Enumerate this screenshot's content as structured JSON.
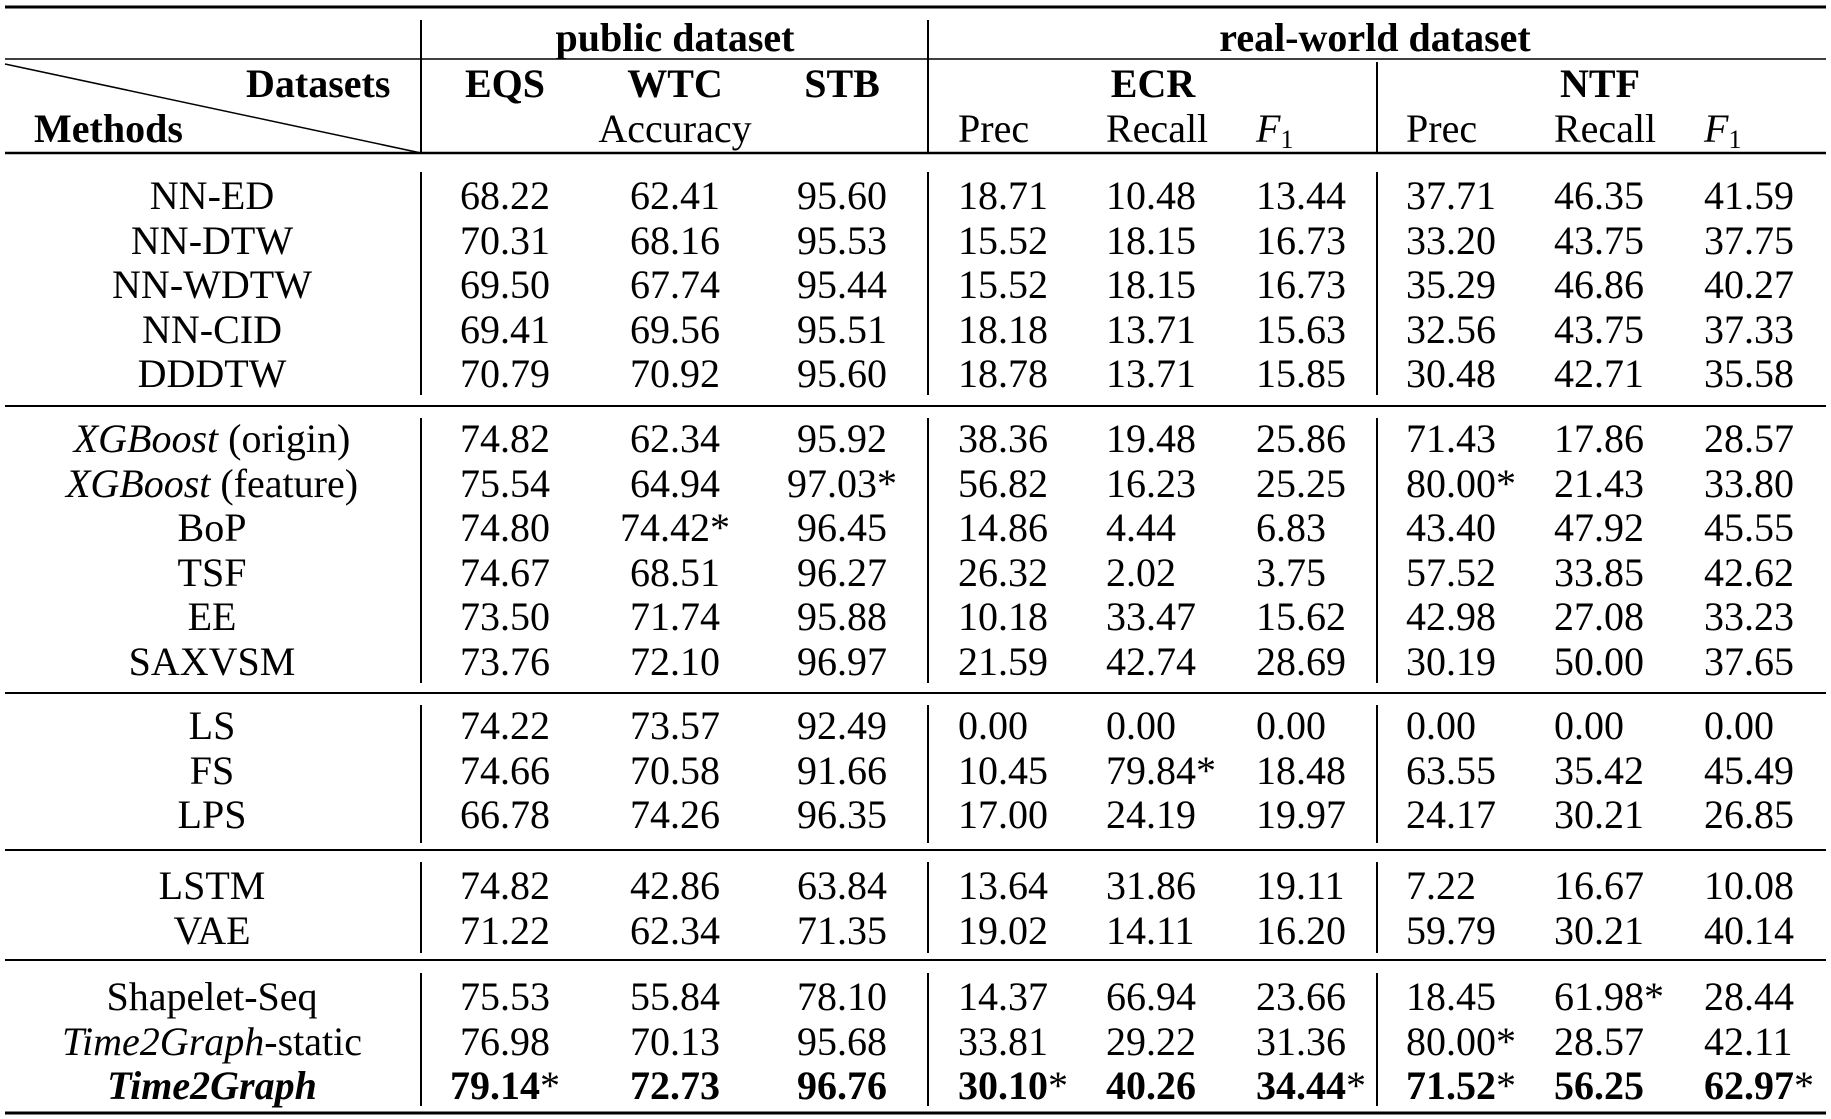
{
  "header": {
    "group_public": "public dataset",
    "group_real": "real-world dataset",
    "diag_top": "Datasets",
    "diag_bottom": "Methods",
    "datasets": [
      "EQS",
      "WTC",
      "STB",
      "ECR",
      "NTF"
    ],
    "accuracy_label": "Accuracy",
    "prec": "Prec",
    "recall": "Recall",
    "f1_main": "F",
    "f1_sub": "1"
  },
  "groups": [
    {
      "rows": [
        {
          "method": "NN-ED",
          "italic": "",
          "suffix": "",
          "values": [
            "68.22",
            "62.41",
            "95.60",
            "18.71",
            "10.48",
            "13.44",
            "37.71",
            "46.35",
            "41.59"
          ]
        },
        {
          "method": "NN-DTW",
          "italic": "",
          "suffix": "",
          "values": [
            "70.31",
            "68.16",
            "95.53",
            "15.52",
            "18.15",
            "16.73",
            "33.20",
            "43.75",
            "37.75"
          ]
        },
        {
          "method": "NN-WDTW",
          "italic": "",
          "suffix": "",
          "values": [
            "69.50",
            "67.74",
            "95.44",
            "15.52",
            "18.15",
            "16.73",
            "35.29",
            "46.86",
            "40.27"
          ]
        },
        {
          "method": "NN-CID",
          "italic": "",
          "suffix": "",
          "values": [
            "69.41",
            "69.56",
            "95.51",
            "18.18",
            "13.71",
            "15.63",
            "32.56",
            "43.75",
            "37.33"
          ]
        },
        {
          "method": "DDDTW",
          "italic": "",
          "suffix": "",
          "values": [
            "70.79",
            "70.92",
            "95.60",
            "18.78",
            "13.71",
            "15.85",
            "30.48",
            "42.71",
            "35.58"
          ]
        }
      ]
    },
    {
      "rows": [
        {
          "method": "",
          "italic": "XGBoost",
          "suffix": " (origin)",
          "values": [
            "74.82",
            "62.34",
            "95.92",
            "38.36",
            "19.48",
            "25.86",
            "71.43",
            "17.86",
            "28.57"
          ]
        },
        {
          "method": "",
          "italic": "XGBoost",
          "suffix": " (feature)",
          "values": [
            "75.54",
            "64.94",
            "97.03*",
            "56.82",
            "16.23",
            "25.25",
            "80.00*",
            "21.43",
            "33.80"
          ]
        },
        {
          "method": "BoP",
          "italic": "",
          "suffix": "",
          "values": [
            "74.80",
            "74.42*",
            "96.45",
            "14.86",
            "4.44",
            "6.83",
            "43.40",
            "47.92",
            "45.55"
          ]
        },
        {
          "method": "TSF",
          "italic": "",
          "suffix": "",
          "values": [
            "74.67",
            "68.51",
            "96.27",
            "26.32",
            "2.02",
            "3.75",
            "57.52",
            "33.85",
            "42.62"
          ]
        },
        {
          "method": "EE",
          "italic": "",
          "suffix": "",
          "values": [
            "73.50",
            "71.74",
            "95.88",
            "10.18",
            "33.47",
            "15.62",
            "42.98",
            "27.08",
            "33.23"
          ]
        },
        {
          "method": "SAXVSM",
          "italic": "",
          "suffix": "",
          "values": [
            "73.76",
            "72.10",
            "96.97",
            "21.59",
            "42.74",
            "28.69",
            "30.19",
            "50.00",
            "37.65"
          ]
        }
      ]
    },
    {
      "rows": [
        {
          "method": "LS",
          "italic": "",
          "suffix": "",
          "values": [
            "74.22",
            "73.57",
            "92.49",
            "0.00",
            "0.00",
            "0.00",
            "0.00",
            "0.00",
            "0.00"
          ]
        },
        {
          "method": "FS",
          "italic": "",
          "suffix": "",
          "values": [
            "74.66",
            "70.58",
            "91.66",
            "10.45",
            "79.84*",
            "18.48",
            "63.55",
            "35.42",
            "45.49"
          ]
        },
        {
          "method": "LPS",
          "italic": "",
          "suffix": "",
          "values": [
            "66.78",
            "74.26",
            "96.35",
            "17.00",
            "24.19",
            "19.97",
            "24.17",
            "30.21",
            "26.85"
          ]
        }
      ]
    },
    {
      "rows": [
        {
          "method": "LSTM",
          "italic": "",
          "suffix": "",
          "values": [
            "74.82",
            "42.86",
            "63.84",
            "13.64",
            "31.86",
            "19.11",
            "7.22",
            "16.67",
            "10.08"
          ]
        },
        {
          "method": "VAE",
          "italic": "",
          "suffix": "",
          "values": [
            "71.22",
            "62.34",
            "71.35",
            "19.02",
            "14.11",
            "16.20",
            "59.79",
            "30.21",
            "40.14"
          ]
        }
      ]
    },
    {
      "rows": [
        {
          "method": "Shapelet-Seq",
          "italic": "",
          "suffix": "",
          "values": [
            "75.53",
            "55.84",
            "78.10",
            "14.37",
            "66.94",
            "23.66",
            "18.45",
            "61.98*",
            "28.44"
          ]
        },
        {
          "method": "",
          "italic": "Time2Graph",
          "suffix": "-static",
          "values": [
            "76.98",
            "70.13",
            "95.68",
            "33.81",
            "29.22",
            "31.36",
            "80.00*",
            "28.57",
            "42.11"
          ]
        },
        {
          "method": "",
          "italic": "Time2Graph",
          "suffix": "",
          "bold": true,
          "values": [
            "79.14*",
            "72.73",
            "96.76",
            "30.10*",
            "40.26",
            "34.44*",
            "71.52*",
            "56.25",
            "62.97*"
          ]
        }
      ]
    }
  ]
}
